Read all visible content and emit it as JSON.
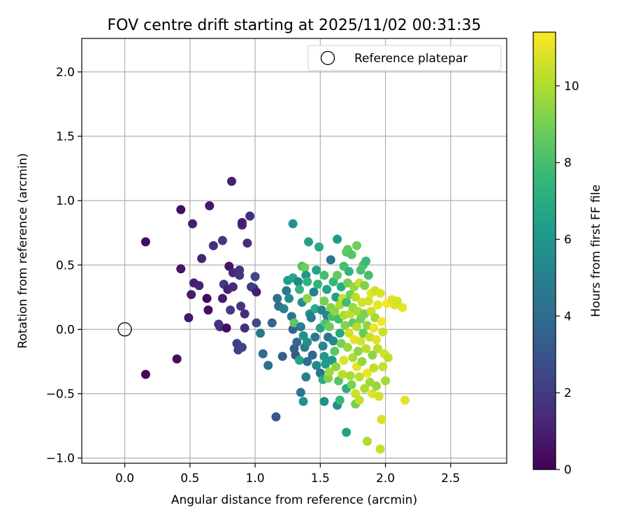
{
  "chart_data": {
    "type": "scatter",
    "title": "FOV centre drift starting at 2025/11/02 00:31:35",
    "xlabel": "Angular distance from reference (arcmin)",
    "ylabel": "Rotation from reference (arcmin)",
    "xlim": [
      -0.33,
      2.93
    ],
    "ylim": [
      -1.04,
      2.26
    ],
    "x_ticks": [
      0.0,
      0.5,
      1.0,
      1.5,
      2.0,
      2.5
    ],
    "x_tick_labels": [
      "0.0",
      "0.5",
      "1.0",
      "1.5",
      "2.0",
      "2.5"
    ],
    "y_ticks": [
      -1.0,
      -0.5,
      0.0,
      0.5,
      1.0,
      1.5,
      2.0
    ],
    "y_tick_labels": [
      "−1.0",
      "−0.5",
      "0.0",
      "0.5",
      "1.0",
      "1.5",
      "2.0"
    ],
    "grid": true,
    "legend": {
      "placement": "top-right",
      "entries": [
        "Reference platepar"
      ]
    },
    "reference_point": {
      "x": 0.0,
      "y": 0.0,
      "marker": "hollow-circle"
    },
    "colorbar": {
      "label": "Hours from first FF file",
      "range": [
        0,
        11.4
      ],
      "ticks": [
        0,
        2,
        4,
        6,
        8,
        10
      ],
      "tick_labels": [
        "0",
        "2",
        "4",
        "6",
        "8",
        "10"
      ],
      "colormap": [
        "#440154",
        "#482878",
        "#3e4989",
        "#31688e",
        "#26828e",
        "#1f9e89",
        "#35b779",
        "#6ece58",
        "#b5de2b",
        "#fde725"
      ]
    },
    "points": [
      [
        0.16,
        -0.35,
        0.2
      ],
      [
        0.16,
        0.68,
        0.3
      ],
      [
        0.4,
        -0.23,
        0.4
      ],
      [
        0.43,
        0.93,
        0.5
      ],
      [
        0.43,
        0.47,
        0.6
      ],
      [
        0.49,
        0.09,
        0.7
      ],
      [
        0.51,
        0.27,
        0.8
      ],
      [
        0.52,
        0.82,
        0.9
      ],
      [
        0.53,
        0.36,
        1.0
      ],
      [
        0.57,
        0.34,
        1.1
      ],
      [
        0.59,
        0.55,
        1.2
      ],
      [
        0.63,
        0.24,
        0.3
      ],
      [
        0.64,
        0.15,
        0.5
      ],
      [
        0.65,
        0.96,
        0.7
      ],
      [
        0.68,
        0.65,
        1.5
      ],
      [
        0.72,
        0.04,
        1.6
      ],
      [
        0.73,
        0.02,
        1.7
      ],
      [
        0.75,
        0.24,
        0.8
      ],
      [
        0.75,
        0.69,
        1.8
      ],
      [
        0.76,
        0.35,
        1.9
      ],
      [
        0.78,
        0.01,
        0.4
      ],
      [
        0.79,
        0.31,
        1.0
      ],
      [
        0.8,
        0.49,
        0.6
      ],
      [
        0.81,
        0.15,
        2.0
      ],
      [
        0.82,
        1.15,
        1.0
      ],
      [
        0.83,
        0.44,
        1.3
      ],
      [
        0.83,
        0.33,
        1.4
      ],
      [
        0.86,
        -0.11,
        2.1
      ],
      [
        0.87,
        -0.16,
        2.2
      ],
      [
        0.88,
        0.46,
        1.7
      ],
      [
        0.88,
        0.42,
        1.8
      ],
      [
        0.89,
        0.18,
        1.9
      ],
      [
        0.9,
        0.81,
        1.2
      ],
      [
        0.9,
        0.83,
        1.0
      ],
      [
        0.9,
        -0.14,
        2.3
      ],
      [
        0.92,
        0.12,
        1.4
      ],
      [
        0.92,
        0.01,
        1.6
      ],
      [
        0.94,
        0.67,
        1.5
      ],
      [
        0.96,
        0.88,
        1.6
      ],
      [
        0.97,
        0.33,
        1.9
      ],
      [
        0.99,
        0.32,
        2.2
      ],
      [
        1.0,
        0.41,
        2.5
      ],
      [
        1.01,
        0.29,
        1.0
      ],
      [
        1.01,
        0.05,
        2.6
      ],
      [
        1.04,
        -0.03,
        4.5
      ],
      [
        1.06,
        -0.19,
        4.0
      ],
      [
        1.1,
        -0.28,
        4.1
      ],
      [
        1.13,
        0.05,
        3.7
      ],
      [
        1.16,
        -0.68,
        3.0
      ],
      [
        1.17,
        0.24,
        4.2
      ],
      [
        1.18,
        0.18,
        4.3
      ],
      [
        1.21,
        -0.21,
        3.3
      ],
      [
        1.22,
        0.16,
        5.0
      ],
      [
        1.24,
        0.3,
        4.6
      ],
      [
        1.25,
        0.38,
        6.4
      ],
      [
        1.26,
        0.24,
        5.5
      ],
      [
        1.28,
        0.1,
        4.4
      ],
      [
        1.29,
        -0.0,
        3.5
      ],
      [
        1.29,
        0.82,
        5.7
      ],
      [
        1.29,
        0.4,
        6.8
      ],
      [
        1.3,
        0.05,
        8.5
      ],
      [
        1.3,
        -0.15,
        3.6
      ],
      [
        1.31,
        -0.2,
        3.2
      ],
      [
        1.32,
        -0.1,
        3.8
      ],
      [
        1.33,
        0.37,
        5.2
      ],
      [
        1.34,
        0.31,
        7.5
      ],
      [
        1.34,
        -0.24,
        6.6
      ],
      [
        1.35,
        0.02,
        4.8
      ],
      [
        1.35,
        -0.49,
        4.5
      ],
      [
        1.36,
        0.21,
        5.6
      ],
      [
        1.36,
        0.49,
        8.1
      ],
      [
        1.37,
        -0.05,
        5.8
      ],
      [
        1.37,
        -0.56,
        5.9
      ],
      [
        1.38,
        0.48,
        8.8
      ],
      [
        1.38,
        -0.14,
        4.7
      ],
      [
        1.39,
        -0.37,
        4.8
      ],
      [
        1.39,
        0.42,
        6.0
      ],
      [
        1.4,
        0.24,
        9.5
      ],
      [
        1.4,
        0.37,
        7.5
      ],
      [
        1.4,
        -0.1,
        5.6
      ],
      [
        1.4,
        -0.25,
        4.2
      ],
      [
        1.41,
        0.68,
        6.5
      ],
      [
        1.42,
        0.12,
        5.4
      ],
      [
        1.43,
        0.09,
        4.9
      ],
      [
        1.44,
        -0.2,
        3.8
      ],
      [
        1.45,
        0.29,
        5.0
      ],
      [
        1.46,
        0.16,
        7.0
      ],
      [
        1.46,
        -0.06,
        4.6
      ],
      [
        1.47,
        0.46,
        6.6
      ],
      [
        1.47,
        -0.28,
        5.4
      ],
      [
        1.48,
        0.35,
        7.5
      ],
      [
        1.49,
        0.64,
        6.9
      ],
      [
        1.5,
        -0.34,
        4.4
      ],
      [
        1.5,
        0.01,
        6.6
      ],
      [
        1.51,
        0.15,
        5.2
      ],
      [
        1.52,
        -0.13,
        5.3
      ],
      [
        1.52,
        -0.39,
        7.0
      ],
      [
        1.53,
        0.22,
        9.0
      ],
      [
        1.53,
        0.42,
        8.0
      ],
      [
        1.53,
        -0.21,
        6.0
      ],
      [
        1.53,
        -0.56,
        5.8
      ],
      [
        1.54,
        -0.27,
        6.3
      ],
      [
        1.54,
        0.05,
        8.2
      ],
      [
        1.55,
        0.31,
        6.7
      ],
      [
        1.55,
        0.11,
        5.1
      ],
      [
        1.56,
        -0.06,
        4.4
      ],
      [
        1.56,
        -0.38,
        9.2
      ],
      [
        1.57,
        0.02,
        8.8
      ],
      [
        1.57,
        -0.33,
        9.8
      ],
      [
        1.58,
        0.54,
        4.3
      ],
      [
        1.58,
        0.17,
        9.3
      ],
      [
        1.59,
        -0.24,
        6.2
      ],
      [
        1.59,
        0.1,
        8.0
      ],
      [
        1.6,
        -0.09,
        5.4
      ],
      [
        1.6,
        0.37,
        7.6
      ],
      [
        1.61,
        0.14,
        9.4
      ],
      [
        1.61,
        -0.17,
        8.4
      ],
      [
        1.62,
        0.25,
        6.4
      ],
      [
        1.62,
        -0.29,
        9.5
      ],
      [
        1.63,
        -0.59,
        5.5
      ],
      [
        1.63,
        0.42,
        8.6
      ],
      [
        1.63,
        0.7,
        6.3
      ],
      [
        1.64,
        0.08,
        7.9
      ],
      [
        1.64,
        -0.4,
        8.3
      ],
      [
        1.65,
        -0.55,
        7.6
      ],
      [
        1.65,
        0.19,
        10.0
      ],
      [
        1.65,
        -0.03,
        6.9
      ],
      [
        1.66,
        0.33,
        7.1
      ],
      [
        1.66,
        -0.11,
        9.0
      ],
      [
        1.67,
        0.24,
        10.5
      ],
      [
        1.67,
        -0.35,
        10.2
      ],
      [
        1.68,
        0.49,
        8.0
      ],
      [
        1.68,
        0.11,
        10.0
      ],
      [
        1.68,
        -0.24,
        10.8
      ],
      [
        1.69,
        0.03,
        9.3
      ],
      [
        1.7,
        -0.46,
        7.0
      ],
      [
        1.7,
        0.6,
        8.5
      ],
      [
        1.7,
        0.21,
        7.8
      ],
      [
        1.7,
        -0.8,
        6.5
      ],
      [
        1.71,
        0.36,
        9.0
      ],
      [
        1.71,
        0.62,
        8.6
      ],
      [
        1.71,
        -0.14,
        9.6
      ],
      [
        1.72,
        0.45,
        7.4
      ],
      [
        1.72,
        -0.03,
        10.6
      ],
      [
        1.73,
        0.27,
        8.8
      ],
      [
        1.73,
        -0.36,
        9.9
      ],
      [
        1.73,
        0.12,
        10.3
      ],
      [
        1.74,
        0.58,
        8.3
      ],
      [
        1.74,
        -0.43,
        9.1
      ],
      [
        1.75,
        0.17,
        9.7
      ],
      [
        1.75,
        -0.22,
        10.0
      ],
      [
        1.75,
        0.05,
        8.6
      ],
      [
        1.76,
        0.33,
        9.6
      ],
      [
        1.76,
        -0.08,
        10.9
      ],
      [
        1.77,
        -0.5,
        10.5
      ],
      [
        1.77,
        0.25,
        10.2
      ],
      [
        1.77,
        -0.58,
        9.0
      ],
      [
        1.78,
        0.65,
        8.9
      ],
      [
        1.78,
        0.02,
        10.1
      ],
      [
        1.78,
        -0.29,
        11.0
      ],
      [
        1.79,
        0.14,
        9.9
      ],
      [
        1.79,
        -0.17,
        9.5
      ],
      [
        1.8,
        0.36,
        10.4
      ],
      [
        1.8,
        -0.37,
        10.3
      ],
      [
        1.8,
        -0.55,
        10.4
      ],
      [
        1.81,
        0.08,
        9.0
      ],
      [
        1.81,
        0.46,
        8.1
      ],
      [
        1.81,
        -0.09,
        10.7
      ],
      [
        1.82,
        0.21,
        10.6
      ],
      [
        1.82,
        -0.25,
        9.6
      ],
      [
        1.83,
        -0.03,
        8.7
      ],
      [
        1.83,
        0.5,
        8.2
      ],
      [
        1.84,
        -0.46,
        10.0
      ],
      [
        1.84,
        0.12,
        9.1
      ],
      [
        1.84,
        0.34,
        9.2
      ],
      [
        1.85,
        -0.15,
        10.2
      ],
      [
        1.85,
        0.53,
        7.7
      ],
      [
        1.86,
        -0.87,
        10.0
      ],
      [
        1.86,
        -0.34,
        11.1
      ],
      [
        1.86,
        0.03,
        9.5
      ],
      [
        1.87,
        0.22,
        10.6
      ],
      [
        1.87,
        0.42,
        8.0
      ],
      [
        1.88,
        -0.06,
        10.4
      ],
      [
        1.88,
        -0.41,
        9.7
      ],
      [
        1.89,
        0.28,
        11.0
      ],
      [
        1.89,
        0.14,
        10.5
      ],
      [
        1.9,
        -0.2,
        9.4
      ],
      [
        1.9,
        -0.5,
        10.8
      ],
      [
        1.91,
        0.01,
        11.1
      ],
      [
        1.91,
        -0.3,
        10.3
      ],
      [
        1.92,
        0.09,
        9.8
      ],
      [
        1.92,
        0.3,
        10.5
      ],
      [
        1.93,
        -0.44,
        9.6
      ],
      [
        1.93,
        -0.08,
        10.9
      ],
      [
        1.94,
        0.19,
        11.0
      ],
      [
        1.94,
        -0.15,
        10.2
      ],
      [
        1.95,
        -0.52,
        10.6
      ],
      [
        1.96,
        0.28,
        10.8
      ],
      [
        1.96,
        -0.93,
        10.4
      ],
      [
        1.97,
        -0.7,
        10.7
      ],
      [
        1.97,
        0.06,
        11.2
      ],
      [
        1.98,
        -0.29,
        10.4
      ],
      [
        1.98,
        -0.02,
        10.5
      ],
      [
        1.99,
        -0.19,
        10.6
      ],
      [
        2.0,
        -0.4,
        9.8
      ],
      [
        2.01,
        0.2,
        11.3
      ],
      [
        2.02,
        -0.22,
        10.3
      ],
      [
        2.05,
        0.23,
        10.9
      ],
      [
        2.07,
        0.19,
        10.8
      ],
      [
        2.09,
        0.22,
        10.7
      ],
      [
        2.13,
        0.17,
        11.0
      ],
      [
        2.15,
        -0.55,
        10.9
      ]
    ]
  }
}
